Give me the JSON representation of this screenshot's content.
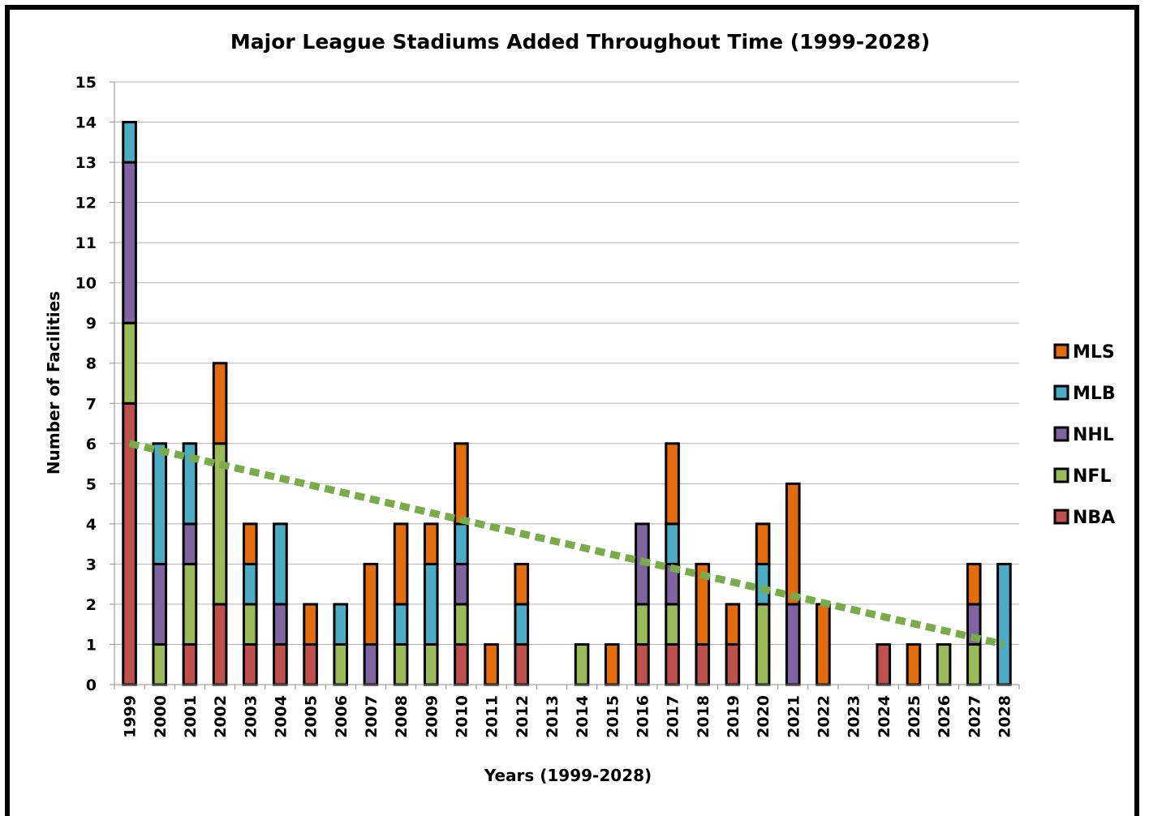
{
  "chart_data": {
    "type": "bar",
    "stacked": true,
    "title": "Major League Stadiums Added Throughout Time (1999-2028)",
    "xlabel": "Years (1999-2028)",
    "ylabel": "Number of Facilities",
    "ylim": [
      0,
      15
    ],
    "yticks": [
      "0",
      "1",
      "2",
      "3",
      "4",
      "5",
      "6",
      "7",
      "8",
      "9",
      "10",
      "11",
      "12",
      "13",
      "14",
      "15"
    ],
    "grid": true,
    "legend_position": "right",
    "categories": [
      "1999",
      "2000",
      "2001",
      "2002",
      "2003",
      "2004",
      "2005",
      "2006",
      "2007",
      "2008",
      "2009",
      "2010",
      "2011",
      "2012",
      "2013",
      "2014",
      "2015",
      "2016",
      "2017",
      "2018",
      "2019",
      "2020",
      "2021",
      "2022",
      "2023",
      "2024",
      "2025",
      "2026",
      "2027",
      "2028"
    ],
    "series": [
      {
        "name": "NBA",
        "color": "#c0504d",
        "values": [
          7,
          0,
          1,
          2,
          1,
          1,
          1,
          0,
          0,
          0,
          0,
          1,
          0,
          1,
          0,
          0,
          0,
          1,
          1,
          1,
          1,
          0,
          0,
          0,
          0,
          1,
          0,
          0,
          0,
          0
        ]
      },
      {
        "name": "NFL",
        "color": "#9bbb59",
        "values": [
          2,
          1,
          2,
          4,
          1,
          0,
          0,
          1,
          0,
          1,
          1,
          1,
          0,
          0,
          0,
          1,
          0,
          1,
          1,
          0,
          0,
          2,
          0,
          0,
          0,
          0,
          0,
          1,
          1,
          0
        ]
      },
      {
        "name": "NHL",
        "color": "#8064a2",
        "values": [
          4,
          2,
          1,
          0,
          0,
          1,
          0,
          0,
          1,
          0,
          0,
          1,
          0,
          0,
          0,
          0,
          0,
          2,
          1,
          0,
          0,
          0,
          2,
          0,
          0,
          0,
          0,
          0,
          1,
          0
        ]
      },
      {
        "name": "MLB",
        "color": "#4bacc6",
        "values": [
          1,
          3,
          2,
          0,
          1,
          2,
          0,
          1,
          0,
          1,
          2,
          1,
          0,
          1,
          0,
          0,
          0,
          0,
          1,
          0,
          0,
          1,
          0,
          0,
          0,
          0,
          0,
          0,
          0,
          3
        ]
      },
      {
        "name": "MLS",
        "color": "#e46c0a",
        "values": [
          0,
          0,
          0,
          2,
          1,
          0,
          1,
          0,
          2,
          2,
          1,
          2,
          1,
          1,
          0,
          0,
          1,
          0,
          2,
          2,
          1,
          1,
          3,
          2,
          0,
          0,
          1,
          0,
          1,
          0
        ]
      }
    ],
    "legend_order": [
      "MLS",
      "MLB",
      "NHL",
      "NFL",
      "NBA"
    ],
    "trendline": {
      "type": "linear",
      "color": "#77ac48",
      "start": 6.0,
      "end": 1.0
    }
  }
}
